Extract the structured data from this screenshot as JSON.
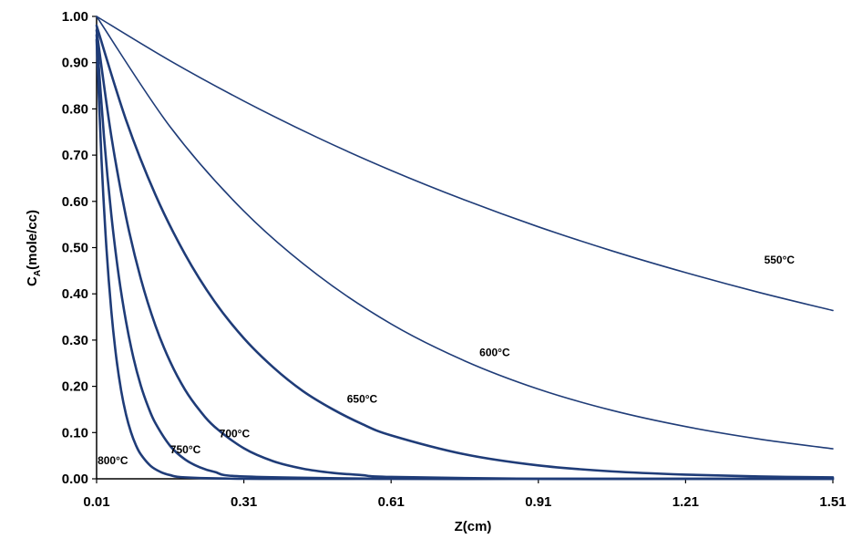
{
  "chart_data": {
    "type": "line",
    "title": "",
    "xlabel": "Z(cm)",
    "ylabel_main": "C",
    "ylabel_sub": "A",
    "ylabel_rest": "(mole/cc)",
    "xlim": [
      0.01,
      1.51
    ],
    "ylim": [
      0.0,
      1.0
    ],
    "x_ticks": [
      "0.01",
      "0.31",
      "0.61",
      "0.91",
      "1.21",
      "1.51"
    ],
    "y_ticks": [
      "0.00",
      "0.10",
      "0.20",
      "0.30",
      "0.40",
      "0.50",
      "0.60",
      "0.70",
      "0.80",
      "0.90",
      "1.00"
    ],
    "grid": false,
    "line_color": "#1f3c78",
    "series": [
      {
        "name": "550°C",
        "label_at": [
          1.37,
          0.465
        ],
        "x": [
          0.01,
          0.16,
          0.31,
          0.46,
          0.61,
          0.76,
          0.91,
          1.06,
          1.21,
          1.36,
          1.51
        ],
        "y": [
          1.0,
          0.904,
          0.817,
          0.738,
          0.667,
          0.603,
          0.545,
          0.493,
          0.446,
          0.403,
          0.364
        ]
      },
      {
        "name": "600°C",
        "label_at": [
          0.79,
          0.265
        ],
        "x": [
          0.01,
          0.16,
          0.31,
          0.46,
          0.61,
          0.76,
          0.91,
          1.06,
          1.21,
          1.36,
          1.51
        ],
        "y": [
          1.0,
          0.761,
          0.579,
          0.441,
          0.335,
          0.255,
          0.194,
          0.148,
          0.113,
          0.086,
          0.065
        ]
      },
      {
        "name": "650°C",
        "label_at": [
          0.52,
          0.165
        ],
        "x": [
          0.01,
          0.07,
          0.13,
          0.19,
          0.25,
          0.31,
          0.37,
          0.43,
          0.49,
          0.55,
          0.61,
          0.76,
          0.91,
          1.06,
          1.21,
          1.36,
          1.51
        ],
        "y": [
          0.98,
          0.776,
          0.614,
          0.486,
          0.384,
          0.304,
          0.241,
          0.19,
          0.151,
          0.119,
          0.094,
          0.053,
          0.029,
          0.016,
          0.009,
          0.005,
          0.003
        ]
      },
      {
        "name": "700°C",
        "label_at": [
          0.26,
          0.09
        ],
        "x": [
          0.01,
          0.04,
          0.07,
          0.1,
          0.13,
          0.16,
          0.19,
          0.22,
          0.25,
          0.31,
          0.37,
          0.43,
          0.49,
          0.55,
          0.61,
          0.91,
          1.21,
          1.51
        ],
        "y": [
          0.97,
          0.741,
          0.566,
          0.433,
          0.331,
          0.253,
          0.193,
          0.148,
          0.113,
          0.066,
          0.038,
          0.022,
          0.013,
          0.008,
          0.004,
          0.0,
          0.0,
          0.0
        ]
      },
      {
        "name": "750°C",
        "label_at": [
          0.16,
          0.055
        ],
        "x": [
          0.01,
          0.025,
          0.04,
          0.055,
          0.07,
          0.085,
          0.1,
          0.115,
          0.13,
          0.16,
          0.19,
          0.22,
          0.25,
          0.31,
          0.61,
          0.91,
          1.21,
          1.51
        ],
        "y": [
          0.96,
          0.741,
          0.571,
          0.44,
          0.34,
          0.262,
          0.202,
          0.156,
          0.12,
          0.071,
          0.042,
          0.025,
          0.015,
          0.005,
          0.0,
          0.0,
          0.0,
          0.0
        ]
      },
      {
        "name": "800°C",
        "label_at": [
          0.012,
          0.032
        ],
        "x": [
          0.01,
          0.02,
          0.03,
          0.04,
          0.05,
          0.06,
          0.07,
          0.08,
          0.09,
          0.1,
          0.12,
          0.14,
          0.16,
          0.19,
          0.31,
          0.61,
          1.51
        ],
        "y": [
          0.95,
          0.69,
          0.5,
          0.363,
          0.263,
          0.191,
          0.139,
          0.101,
          0.073,
          0.053,
          0.028,
          0.015,
          0.008,
          0.003,
          0.0,
          0.0,
          0.0
        ]
      }
    ]
  }
}
